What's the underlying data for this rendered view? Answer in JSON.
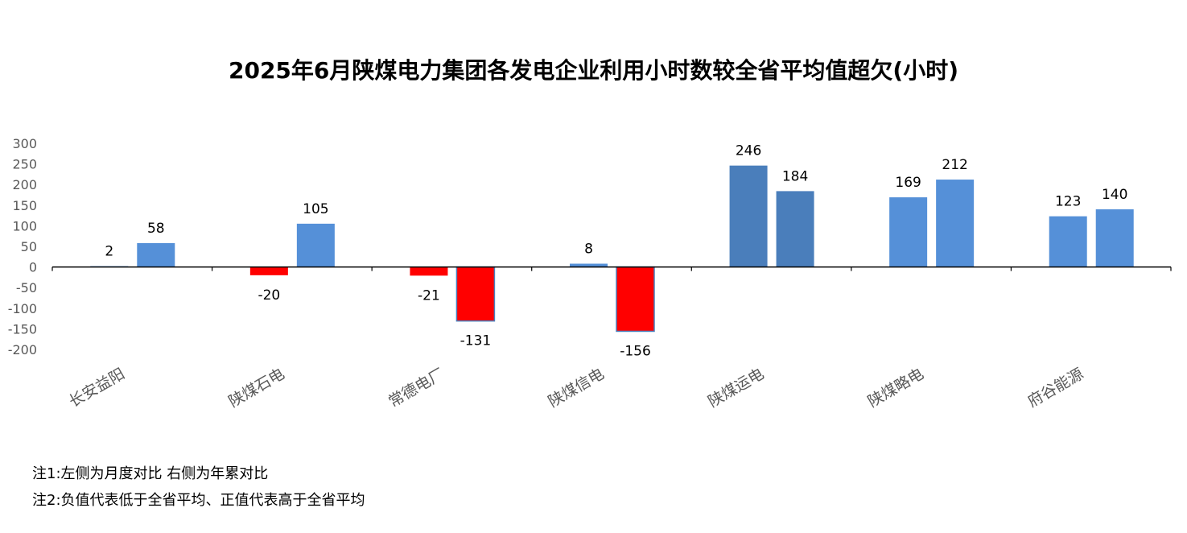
{
  "chart_data": {
    "type": "bar",
    "title": "2025年6月陕煤电力集团各发电企业利用小时数较全省平均值超欠(小时)",
    "categories": [
      "长安益阳",
      "陕煤石电",
      "常德电厂",
      "陕煤信电",
      "陕煤运电",
      "陕煤略电",
      "府谷能源"
    ],
    "series": [
      {
        "values": [
          2,
          -20,
          -21,
          8,
          246,
          169,
          123
        ]
      },
      {
        "values": [
          58,
          105,
          -131,
          -156,
          184,
          212,
          140
        ]
      }
    ],
    "ylim": [
      -200,
      300
    ],
    "yticks": [
      300,
      250,
      200,
      150,
      100,
      50,
      0,
      -50,
      -100,
      -150,
      -200
    ],
    "xlabel": "",
    "ylabel": "",
    "grid": false,
    "legend": "none",
    "colors": {
      "positive": "#5590D8",
      "positive_dark": "#4A7EBB",
      "negative": "#FF0000",
      "axis": "#000000"
    }
  },
  "notes": [
    "注1:左侧为月度对比  右侧为年累对比",
    "注2:负值代表低于全省平均、正值代表高于全省平均"
  ]
}
